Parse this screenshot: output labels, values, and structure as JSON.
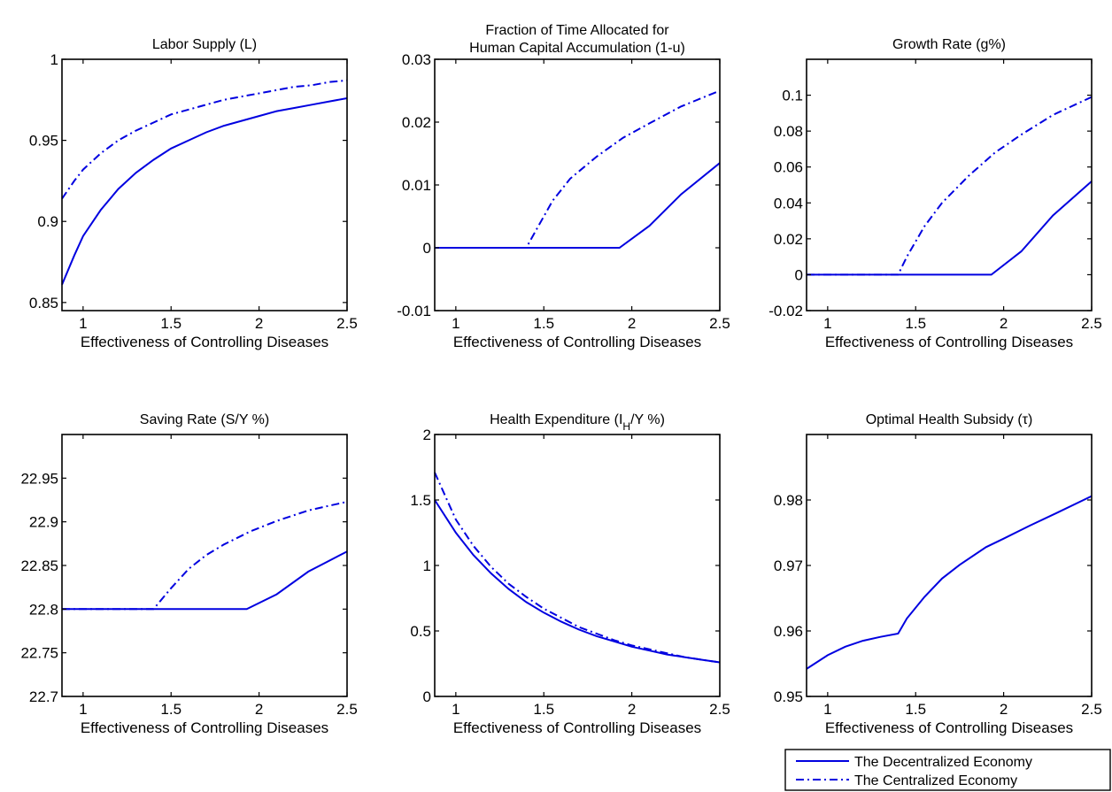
{
  "colors": {
    "series": "#0000e0",
    "axis": "#000000",
    "background": "#ffffff"
  },
  "legend": {
    "position": "bottom-right",
    "entries": [
      {
        "label": "The Decentralized Economy",
        "style": "solid"
      },
      {
        "label": "The Centralized Economy",
        "style": "dashdot"
      }
    ]
  },
  "chart_data": [
    {
      "type": "line",
      "title": "Labor Supply (L)",
      "xlabel": "Effectiveness of Controlling Diseases",
      "xlim": [
        0.88,
        2.5
      ],
      "ylim": [
        0.845,
        1.0
      ],
      "xticks": [
        1,
        1.5,
        2,
        2.5
      ],
      "xtick_labels": [
        "1",
        "1.5",
        "2",
        "2.5"
      ],
      "yticks": [
        0.85,
        0.9,
        0.95,
        1
      ],
      "ytick_labels": [
        "0.85",
        "0.9",
        "0.95",
        "1"
      ],
      "grid": false,
      "series": [
        {
          "name": "The Decentralized Economy",
          "style": "solid",
          "x": [
            0.88,
            0.95,
            1.0,
            1.1,
            1.2,
            1.3,
            1.4,
            1.5,
            1.6,
            1.7,
            1.8,
            1.9,
            2.0,
            2.1,
            2.2,
            2.3,
            2.4,
            2.5
          ],
          "y": [
            0.861,
            0.879,
            0.891,
            0.907,
            0.92,
            0.93,
            0.938,
            0.945,
            0.95,
            0.955,
            0.959,
            0.962,
            0.965,
            0.968,
            0.97,
            0.972,
            0.974,
            0.976
          ]
        },
        {
          "name": "The Centralized Economy",
          "style": "dashdot",
          "x": [
            0.88,
            0.95,
            1.0,
            1.1,
            1.2,
            1.3,
            1.4,
            1.5,
            1.6,
            1.7,
            1.8,
            1.9,
            2.0,
            2.1,
            2.2,
            2.3,
            2.4,
            2.5
          ],
          "y": [
            0.914,
            0.925,
            0.932,
            0.942,
            0.95,
            0.956,
            0.961,
            0.966,
            0.969,
            0.972,
            0.975,
            0.977,
            0.979,
            0.981,
            0.983,
            0.984,
            0.986,
            0.987
          ]
        }
      ]
    },
    {
      "type": "line",
      "title": "Fraction of Time Allocated for Human Capital Accumulation (1-u)",
      "title_lines": [
        "Fraction of Time Allocated for",
        "Human Capital Accumulation (1-u)"
      ],
      "xlabel": "Effectiveness of Controlling Diseases",
      "xlim": [
        0.88,
        2.5
      ],
      "ylim": [
        -0.01,
        0.03
      ],
      "xticks": [
        1,
        1.5,
        2,
        2.5
      ],
      "xtick_labels": [
        "1",
        "1.5",
        "2",
        "2.5"
      ],
      "yticks": [
        -0.01,
        0,
        0.01,
        0.02,
        0.03
      ],
      "ytick_labels": [
        "-0.01",
        "0",
        "0.01",
        "0.02",
        "0.03"
      ],
      "grid": false,
      "series": [
        {
          "name": "The Decentralized Economy",
          "style": "solid",
          "x": [
            0.88,
            1.93,
            2.1,
            2.28,
            2.5
          ],
          "y": [
            0,
            0,
            0.0035,
            0.0085,
            0.0135
          ]
        },
        {
          "name": "The Centralized Economy",
          "style": "dashdot",
          "x": [
            0.88,
            1.4,
            1.45,
            1.55,
            1.65,
            1.8,
            1.95,
            2.1,
            2.28,
            2.5
          ],
          "y": [
            0,
            0,
            0.0025,
            0.0075,
            0.011,
            0.0145,
            0.0175,
            0.0198,
            0.0225,
            0.025
          ]
        }
      ]
    },
    {
      "type": "line",
      "title": "Growth Rate (g%)",
      "xlabel": "Effectiveness of Controlling Diseases",
      "xlim": [
        0.88,
        2.5
      ],
      "ylim": [
        -0.02,
        0.12
      ],
      "xticks": [
        1,
        1.5,
        2,
        2.5
      ],
      "xtick_labels": [
        "1",
        "1.5",
        "2",
        "2.5"
      ],
      "yticks": [
        -0.02,
        0,
        0.02,
        0.04,
        0.06,
        0.08,
        0.1
      ],
      "ytick_labels": [
        "-0.02",
        "0",
        "0.02",
        "0.04",
        "0.06",
        "0.08",
        "0.1"
      ],
      "grid": false,
      "series": [
        {
          "name": "The Decentralized Economy",
          "style": "solid",
          "x": [
            0.88,
            1.93,
            2.1,
            2.28,
            2.5
          ],
          "y": [
            0,
            0,
            0.013,
            0.033,
            0.052
          ]
        },
        {
          "name": "The Centralized Economy",
          "style": "dashdot",
          "x": [
            0.88,
            1.4,
            1.45,
            1.55,
            1.65,
            1.8,
            1.95,
            2.1,
            2.28,
            2.5
          ],
          "y": [
            0,
            0,
            0.01,
            0.027,
            0.04,
            0.055,
            0.068,
            0.078,
            0.089,
            0.099
          ]
        }
      ]
    },
    {
      "type": "line",
      "title": "Saving Rate (S/Y %)",
      "xlabel": "Effectiveness of Controlling Diseases",
      "xlim": [
        0.88,
        2.5
      ],
      "ylim": [
        22.7,
        23.0
      ],
      "xticks": [
        1,
        1.5,
        2,
        2.5
      ],
      "xtick_labels": [
        "1",
        "1.5",
        "2",
        "2.5"
      ],
      "yticks": [
        22.7,
        22.75,
        22.8,
        22.85,
        22.9,
        22.95
      ],
      "ytick_labels": [
        "22.7",
        "22.75",
        "22.8",
        "22.85",
        "22.9",
        "22.95"
      ],
      "grid": false,
      "series": [
        {
          "name": "The Decentralized Economy",
          "style": "solid",
          "x": [
            0.88,
            1.93,
            2.1,
            2.28,
            2.5
          ],
          "y": [
            22.8,
            22.8,
            22.817,
            22.843,
            22.866
          ]
        },
        {
          "name": "The Centralized Economy",
          "style": "dashdot",
          "x": [
            0.88,
            1.4,
            1.5,
            1.6,
            1.7,
            1.8,
            1.95,
            2.1,
            2.28,
            2.5
          ],
          "y": [
            22.8,
            22.8,
            22.824,
            22.846,
            22.862,
            22.874,
            22.889,
            22.901,
            22.913,
            22.923
          ]
        }
      ]
    },
    {
      "type": "line",
      "title": "Health Expenditure (I_H/Y %)",
      "title_prefix": "Health Expenditure (I",
      "title_subscript": "H",
      "title_suffix": "/Y %)",
      "xlabel": "Effectiveness of Controlling Diseases",
      "xlim": [
        0.88,
        2.5
      ],
      "ylim": [
        0,
        2
      ],
      "xticks": [
        1,
        1.5,
        2,
        2.5
      ],
      "xtick_labels": [
        "1",
        "1.5",
        "2",
        "2.5"
      ],
      "yticks": [
        0,
        0.5,
        1,
        1.5,
        2
      ],
      "ytick_labels": [
        "0",
        "0.5",
        "1",
        "1.5",
        "2"
      ],
      "grid": false,
      "series": [
        {
          "name": "The Decentralized Economy",
          "style": "solid",
          "x": [
            0.88,
            1.0,
            1.1,
            1.2,
            1.3,
            1.4,
            1.5,
            1.6,
            1.7,
            1.8,
            1.9,
            2.0,
            2.1,
            2.2,
            2.3,
            2.4,
            2.5
          ],
          "y": [
            1.5,
            1.25,
            1.08,
            0.94,
            0.82,
            0.72,
            0.64,
            0.57,
            0.51,
            0.46,
            0.42,
            0.38,
            0.35,
            0.32,
            0.3,
            0.28,
            0.26
          ]
        },
        {
          "name": "The Centralized Economy",
          "style": "dashdot",
          "x": [
            0.88,
            1.0,
            1.1,
            1.2,
            1.3,
            1.4,
            1.5,
            1.6,
            1.7,
            1.8,
            1.9,
            2.0,
            2.1,
            2.2,
            2.3,
            2.4,
            2.5
          ],
          "y": [
            1.71,
            1.35,
            1.15,
            0.99,
            0.86,
            0.76,
            0.67,
            0.6,
            0.53,
            0.48,
            0.43,
            0.39,
            0.36,
            0.33,
            0.3,
            0.28,
            0.26
          ]
        }
      ]
    },
    {
      "type": "line",
      "title": "Optimal Health Subsidy (τ)",
      "xlabel": "Effectiveness of Controlling Diseases",
      "xlim": [
        0.88,
        2.5
      ],
      "ylim": [
        0.95,
        0.99
      ],
      "xticks": [
        1,
        1.5,
        2,
        2.5
      ],
      "xtick_labels": [
        "1",
        "1.5",
        "2",
        "2.5"
      ],
      "yticks": [
        0.95,
        0.96,
        0.97,
        0.98
      ],
      "ytick_labels": [
        "0.95",
        "0.96",
        "0.97",
        "0.98"
      ],
      "grid": false,
      "series": [
        {
          "name": "The Decentralized Economy",
          "style": "solid",
          "x": [
            0.88,
            1.0,
            1.1,
            1.2,
            1.3,
            1.4,
            1.45,
            1.55,
            1.65,
            1.75,
            1.9,
            2.0,
            2.15,
            2.3,
            2.5
          ],
          "y": [
            0.9542,
            0.9563,
            0.9576,
            0.9585,
            0.9591,
            0.9596,
            0.9619,
            0.9652,
            0.968,
            0.9701,
            0.9728,
            0.9741,
            0.9761,
            0.978,
            0.9806
          ]
        }
      ]
    }
  ]
}
